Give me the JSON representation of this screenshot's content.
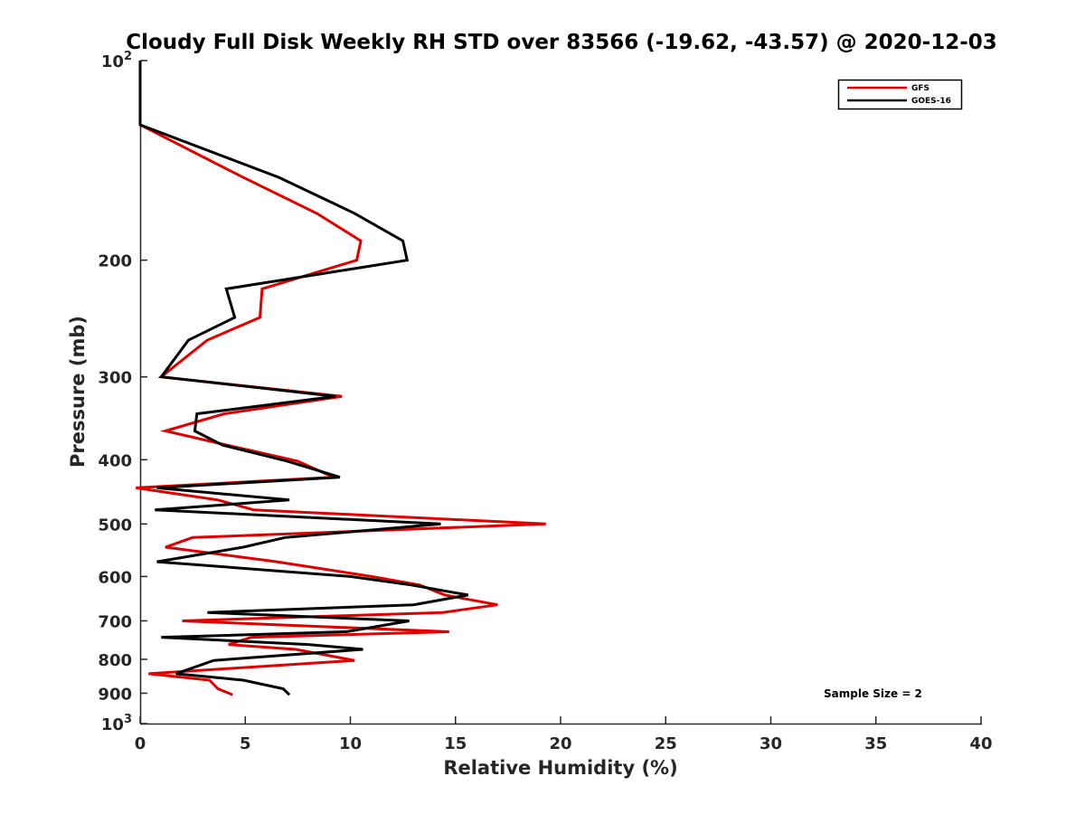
{
  "chart_data": {
    "type": "line",
    "title": "Cloudy Full Disk Weekly RH STD over 83566 (-19.62, -43.57) @ 2020-12-03",
    "xlabel": "Relative Humidity (%)",
    "ylabel": "Pressure (mb)",
    "xlim": [
      0,
      40
    ],
    "ylim": [
      100,
      1000
    ],
    "y_scale": "log",
    "y_reversed": true,
    "grid": false,
    "legend_position": "top-right",
    "x_ticks": [
      0,
      5,
      10,
      15,
      20,
      25,
      30,
      35,
      40
    ],
    "y_ticks": [
      {
        "value": 100,
        "base": "10",
        "exp": "2"
      },
      {
        "value": 200,
        "label": "200"
      },
      {
        "value": 300,
        "label": "300"
      },
      {
        "value": 400,
        "label": "400"
      },
      {
        "value": 500,
        "label": "500"
      },
      {
        "value": 600,
        "label": "600"
      },
      {
        "value": 700,
        "label": "700"
      },
      {
        "value": 800,
        "label": "800"
      },
      {
        "value": 900,
        "label": "900"
      },
      {
        "value": 1000,
        "base": "10",
        "exp": "3"
      }
    ],
    "series": [
      {
        "name": "GFS",
        "color": "#e00000",
        "points": [
          [
            0,
            100
          ],
          [
            0,
            125
          ],
          [
            4.9,
            150
          ],
          [
            8.4,
            170
          ],
          [
            10.5,
            187
          ],
          [
            10.3,
            200
          ],
          [
            5.8,
            221
          ],
          [
            5.7,
            244
          ],
          [
            3.2,
            264
          ],
          [
            1.0,
            300
          ],
          [
            9.6,
            321
          ],
          [
            4.0,
            341
          ],
          [
            1.2,
            362
          ],
          [
            4.1,
            380
          ],
          [
            7.5,
            402
          ],
          [
            9.2,
            425
          ],
          [
            -0.2,
            441
          ],
          [
            3.7,
            460
          ],
          [
            5.4,
            476
          ],
          [
            19.3,
            500
          ],
          [
            2.5,
            524
          ],
          [
            1.2,
            542
          ],
          [
            6.5,
            570
          ],
          [
            11.0,
            600
          ],
          [
            13.3,
            618
          ],
          [
            14.5,
            640
          ],
          [
            17.0,
            662
          ],
          [
            14.4,
            680
          ],
          [
            2.0,
            700
          ],
          [
            14.7,
            727
          ],
          [
            5.3,
            741
          ],
          [
            4.2,
            760
          ],
          [
            7.4,
            773
          ],
          [
            10.2,
            803
          ],
          [
            0.4,
            841
          ],
          [
            3.3,
            860
          ],
          [
            3.7,
            886
          ],
          [
            4.4,
            905
          ]
        ]
      },
      {
        "name": "GOES-16",
        "color": "#000000",
        "points": [
          [
            0,
            100
          ],
          [
            0,
            125
          ],
          [
            6.6,
            150
          ],
          [
            10.2,
            170
          ],
          [
            12.5,
            187
          ],
          [
            12.7,
            200
          ],
          [
            4.1,
            221
          ],
          [
            4.5,
            244
          ],
          [
            2.3,
            264
          ],
          [
            1.0,
            300
          ],
          [
            9.3,
            321
          ],
          [
            2.7,
            341
          ],
          [
            2.6,
            362
          ],
          [
            3.9,
            380
          ],
          [
            7.0,
            402
          ],
          [
            9.5,
            425
          ],
          [
            0.8,
            441
          ],
          [
            7.1,
            460
          ],
          [
            0.7,
            476
          ],
          [
            14.3,
            500
          ],
          [
            6.9,
            524
          ],
          [
            4.9,
            542
          ],
          [
            0.8,
            570
          ],
          [
            10.0,
            600
          ],
          [
            12.9,
            618
          ],
          [
            15.6,
            640
          ],
          [
            13.0,
            662
          ],
          [
            3.2,
            680
          ],
          [
            12.8,
            700
          ],
          [
            9.8,
            727
          ],
          [
            1.0,
            741
          ],
          [
            8.0,
            760
          ],
          [
            10.6,
            773
          ],
          [
            3.5,
            803
          ],
          [
            1.7,
            841
          ],
          [
            4.9,
            860
          ],
          [
            6.8,
            886
          ],
          [
            7.1,
            905
          ]
        ]
      }
    ],
    "legend": [
      {
        "label": "GFS",
        "color": "#e00000"
      },
      {
        "label": "GOES-16",
        "color": "#000000"
      }
    ],
    "annotations": [
      {
        "text": "Sample Size = 2"
      }
    ]
  }
}
